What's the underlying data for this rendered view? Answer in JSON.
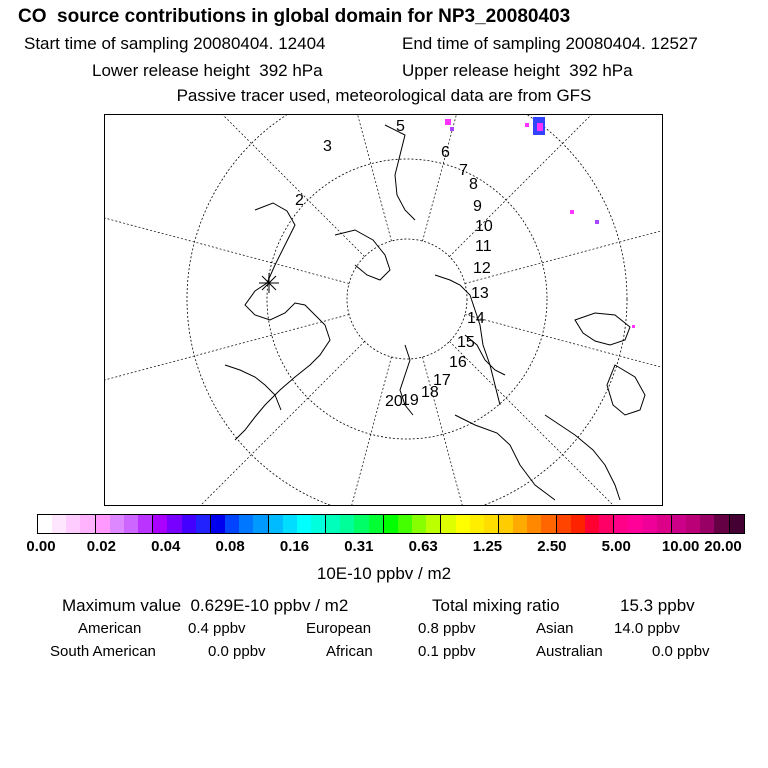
{
  "header": {
    "title": "CO  source contributions in global domain for NP3_20080403",
    "start_label": "Start time of sampling 20080404. 12404",
    "end_label": "End time of sampling 20080404. 12527",
    "lower_label": "Lower release height  392 hPa",
    "upper_label": "Upper release height  392 hPa",
    "note": "Passive tracer used, meteorological data are from GFS"
  },
  "map": {
    "trajectory_labels": [
      "2",
      "3",
      "5",
      "6",
      "7",
      "8",
      "9",
      "10",
      "11",
      "12",
      "13",
      "14",
      "15",
      "16",
      "17",
      "18",
      "19",
      "20"
    ],
    "colors": {
      "plume_magenta": "#ff33ff",
      "plume_blue": "#3344ff",
      "plume_purple": "#aa44ff"
    }
  },
  "colorbar": {
    "colors": [
      "#ffffff",
      "#ffe6ff",
      "#ffccff",
      "#ffb3ff",
      "#ff99ff",
      "#dd88ff",
      "#cc66ff",
      "#bb33ff",
      "#aa00ff",
      "#7700ff",
      "#4400ff",
      "#2222ff",
      "#0000ee",
      "#0044ff",
      "#0077ff",
      "#0099ff",
      "#00bbff",
      "#00ddff",
      "#00ffff",
      "#00ffdd",
      "#00ffbb",
      "#00ff99",
      "#00ff66",
      "#00ff33",
      "#00ff00",
      "#44ff00",
      "#88ff00",
      "#bbff00",
      "#ddff00",
      "#ffff00",
      "#ffee00",
      "#ffdd00",
      "#ffcc00",
      "#ffaa00",
      "#ff8800",
      "#ff6600",
      "#ff4400",
      "#ff2200",
      "#ff0033",
      "#ff0066",
      "#ff0088",
      "#ff0099",
      "#ee0099",
      "#dd0088",
      "#cc0088",
      "#bb0077",
      "#990066",
      "#660044",
      "#440033"
    ],
    "ticks": [
      "0.00",
      "0.02",
      "0.04",
      "0.08",
      "0.16",
      "0.31",
      "0.63",
      "1.25",
      "2.50",
      "5.00",
      "10.00",
      "20.00"
    ],
    "unit": "10E-10 ppbv / m2"
  },
  "stats": {
    "max_label": "Maximum value  0.629E-10 ppbv / m2",
    "total_label": "Total mixing ratio",
    "total_value": "15.3 ppbv"
  },
  "regions": {
    "american_label": "American",
    "american_value": "0.4 ppbv",
    "european_label": "European",
    "european_value": "0.8 ppbv",
    "asian_label": "Asian",
    "asian_value": "14.0 ppbv",
    "south_american_label": "South American",
    "south_american_value": "0.0 ppbv",
    "african_label": "African",
    "african_value": "0.1 ppbv",
    "australian_label": "Australian",
    "australian_value": "0.0 ppbv"
  }
}
